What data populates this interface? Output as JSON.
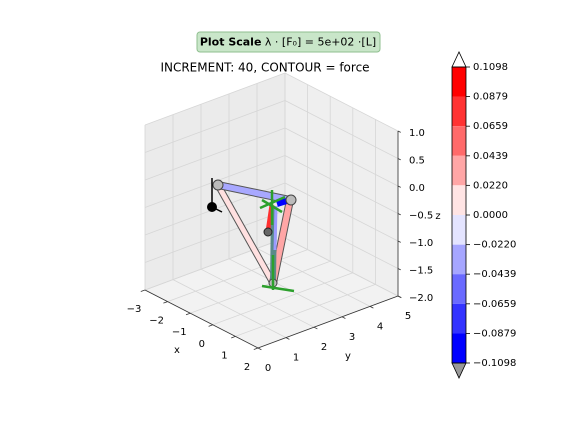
{
  "chart_data": {
    "type": "structure3d",
    "title": "INCREMENT: 40, CONTOUR = force",
    "annotation": {
      "bold": "Plot Scale",
      "text": " λ · [F₀] =  5e+02 ·[L]"
    },
    "xlabel": "x",
    "ylabel": "y",
    "zlabel": "z",
    "xlim": [
      -3,
      2
    ],
    "ylim": [
      0,
      5
    ],
    "zlim": [
      -2,
      1
    ],
    "xticks": [
      {
        "value": -3,
        "label": "−3"
      },
      {
        "value": -2,
        "label": "−2"
      },
      {
        "value": -1,
        "label": "−1"
      },
      0,
      1,
      2
    ],
    "yticks": [
      0,
      1,
      2,
      3,
      4,
      5
    ],
    "zticks": [
      {
        "value": 1,
        "label": "1.0"
      },
      {
        "value": 0.5,
        "label": "0.5"
      },
      {
        "value": 0,
        "label": "0.0"
      },
      {
        "value": -0.5,
        "label": "−0.5"
      },
      {
        "value": -1,
        "label": "−1.0"
      },
      {
        "value": -1.5,
        "label": "−1.5"
      },
      {
        "value": -2,
        "label": "−2.0"
      }
    ],
    "grid": true,
    "colorbar": {
      "lim": [
        -0.1098,
        0.1098
      ],
      "ticks": [
        {
          "value": 0.1098,
          "label": "0.1098"
        },
        {
          "value": 0.0879,
          "label": "0.0879"
        },
        {
          "value": 0.0659,
          "label": "0.0659"
        },
        {
          "value": 0.0439,
          "label": "0.0439"
        },
        {
          "value": 0.022,
          "label": "0.0220"
        },
        {
          "value": 0,
          "label": "0.0000"
        },
        {
          "value": -0.022,
          "label": "−0.0220"
        },
        {
          "value": -0.0439,
          "label": "−0.0439"
        },
        {
          "value": -0.0659,
          "label": "−0.0659"
        },
        {
          "value": -0.0879,
          "label": "−0.0879"
        },
        {
          "value": -0.1098,
          "label": "−0.1098"
        }
      ],
      "colors": [
        "#ff0000",
        "#ff3333",
        "#ff6a6a",
        "#ffa6a6",
        "#ffe4e4",
        "#e4e4ff",
        "#a6a6ff",
        "#6a6aff",
        "#3333ff",
        "#0000ff"
      ],
      "over_color": "#ffffff",
      "under_color": "#999999"
    }
  }
}
